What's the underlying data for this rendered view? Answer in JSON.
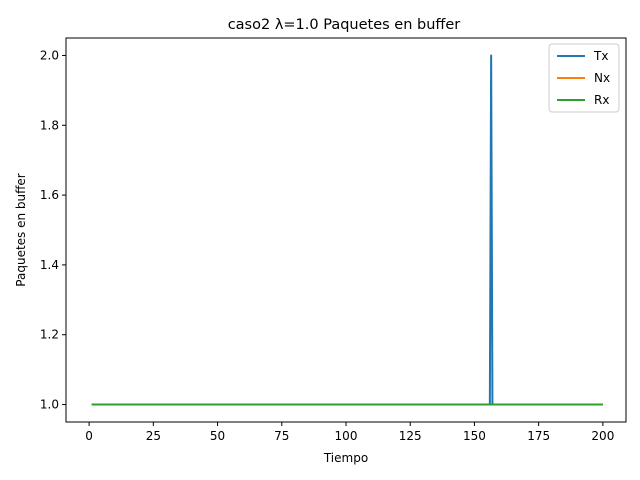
{
  "chart_data": {
    "type": "line",
    "title": "caso2 λ=1.0 Paquetes en buffer",
    "xlabel": "Tiempo",
    "ylabel": "Paquetes en buffer",
    "xlim": [
      -9,
      209
    ],
    "ylim": [
      0.95,
      2.05
    ],
    "xticks": [
      0,
      25,
      50,
      75,
      100,
      125,
      150,
      175,
      200
    ],
    "yticks": [
      1.0,
      1.2,
      1.4,
      1.6,
      1.8,
      2.0
    ],
    "ytick_labels": [
      "1.0",
      "1.2",
      "1.4",
      "1.6",
      "1.8",
      "2.0"
    ],
    "grid": false,
    "legend_position": "top-right",
    "series": [
      {
        "name": "Tx",
        "color": "#1f77b4",
        "x": [
          1,
          156,
          156.5,
          157,
          200
        ],
        "y": [
          1,
          1,
          2,
          1,
          1
        ]
      },
      {
        "name": "Nx",
        "color": "#ff7f0e",
        "x": [
          1,
          200
        ],
        "y": [
          1,
          1
        ]
      },
      {
        "name": "Rx",
        "color": "#2ca02c",
        "x": [
          1,
          200
        ],
        "y": [
          1,
          1
        ]
      }
    ]
  }
}
